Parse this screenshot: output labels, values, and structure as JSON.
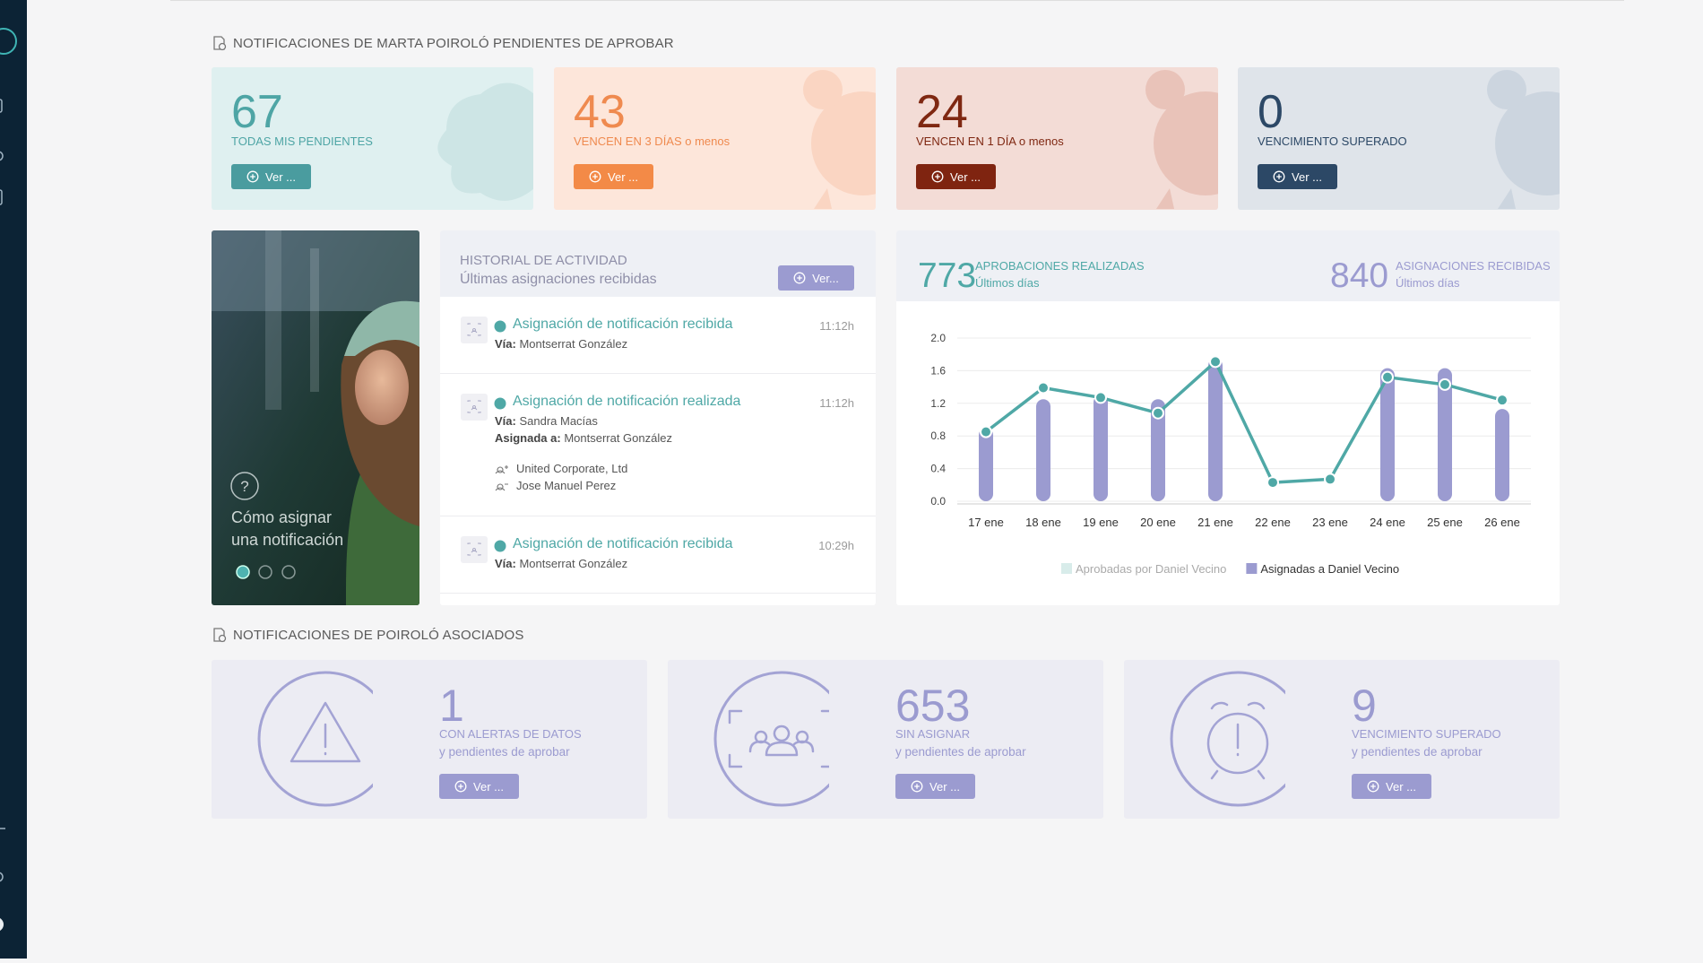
{
  "sections": {
    "pending_title": "NOTIFICACIONES DE MARTA POIROLÓ PENDIENTES DE APROBAR",
    "associated_title": "NOTIFICACIONES DE POIROLÓ ASOCIADOS"
  },
  "stat_cards": [
    {
      "value": 67,
      "label": "TODAS MIS PENDIENTES",
      "button": "Ver ..."
    },
    {
      "value": 43,
      "label": "VENCEN EN 3 DÍAS o menos",
      "button": "Ver ..."
    },
    {
      "value": 24,
      "label": "VENCEN EN 1 DÍA o menos",
      "button": "Ver ..."
    },
    {
      "value": 0,
      "label": "VENCIMIENTO SUPERADO",
      "button": "Ver ..."
    }
  ],
  "carousel": {
    "caption_line1": "Cómo asignar",
    "caption_line2": "una notificación",
    "help": "?"
  },
  "activity": {
    "title": "HISTORIAL DE ACTIVIDAD",
    "subtitle": "Últimas asignaciones recibidas",
    "button": "Ver...",
    "items": [
      {
        "title": "Asignación de notificación recibida",
        "time": "11:12h",
        "details": [
          {
            "label": "Vía:",
            "value": "Montserrat González"
          }
        ]
      },
      {
        "title": "Asignación de notificación realizada",
        "time": "11:12h",
        "details": [
          {
            "label": "Vía:",
            "value": "Sandra Macías"
          },
          {
            "label": "Asignada a:",
            "value": "Montserrat González"
          }
        ],
        "contacts": [
          "United Corporate, Ltd",
          "Jose Manuel Perez"
        ]
      },
      {
        "title": "Asignación de notificación recibida",
        "time": "10:29h",
        "details": [
          {
            "label": "Vía:",
            "value": "Montserrat González"
          }
        ]
      }
    ]
  },
  "chart_card": {
    "stats": [
      {
        "value": 773,
        "label": "APROBACIONES REALIZADAS",
        "sub": "Últimos días"
      },
      {
        "value": 840,
        "label": "ASIGNACIONES RECIBIDAS",
        "sub": "Últimos días"
      }
    ]
  },
  "chart_data": {
    "type": "bar",
    "categories": [
      "17 ene",
      "18 ene",
      "19 ene",
      "20 ene",
      "21 ene",
      "22 ene",
      "23 ene",
      "24 ene",
      "25 ene",
      "26 ene"
    ],
    "series": [
      {
        "name": "Aprobadas por Daniel Vecino",
        "type": "line",
        "color": "#4fa8a6",
        "legend_color": "#d8ecea",
        "values": [
          0.85,
          1.39,
          1.27,
          1.08,
          1.71,
          0.23,
          0.27,
          1.52,
          1.43,
          1.24
        ]
      },
      {
        "name": "Asignadas a Daniel Vecino",
        "color": "#9b9bd0",
        "values": [
          0.9,
          1.25,
          1.3,
          1.25,
          1.75,
          0,
          0,
          1.63,
          1.63,
          1.13
        ]
      }
    ],
    "ylim": [
      0,
      2
    ],
    "yticks": [
      {
        "value": 0,
        "label": "0.0"
      },
      0.4,
      0.8,
      1.2,
      1.6,
      {
        "value": 2,
        "label": "2.0"
      }
    ],
    "grid": true,
    "legend": "bottom"
  },
  "associated_cards": [
    {
      "value": 1,
      "label": "CON ALERTAS DE DATOS",
      "sub": "y pendientes de aprobar",
      "button": "Ver ..."
    },
    {
      "value": 653,
      "label": "SIN ASIGNAR",
      "sub": "y pendientes de aprobar",
      "button": "Ver ..."
    },
    {
      "value": 9,
      "label": "VENCIMIENTO SUPERADO",
      "sub": "y pendientes de aprobar",
      "button": "Ver ..."
    }
  ]
}
